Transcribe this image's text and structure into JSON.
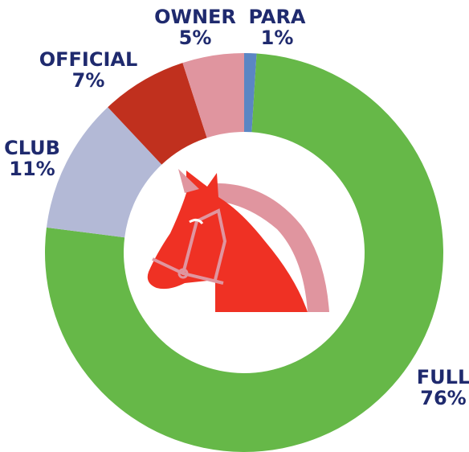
{
  "chart_data": {
    "type": "donut",
    "categories": [
      "PARA",
      "FULL",
      "CLUB",
      "OFFICIAL",
      "OWNER"
    ],
    "values": [
      1,
      76,
      11,
      7,
      5
    ],
    "value_labels": [
      "1%",
      "76%",
      "11%",
      "7%",
      "5%"
    ],
    "colors": [
      "#5b86c4",
      "#66b848",
      "#b3b9d6",
      "#c0301e",
      "#e0959f"
    ]
  }
}
